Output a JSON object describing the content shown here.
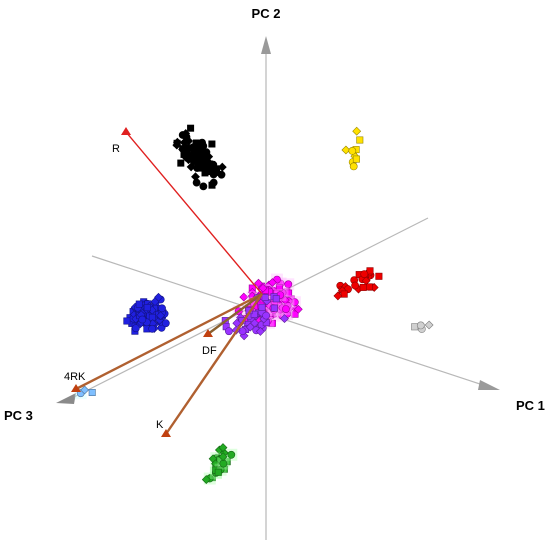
{
  "chart_data": {
    "type": "scatter",
    "subtype": "3d-pca-biplot",
    "title": "",
    "axes": [
      {
        "name": "PC 1",
        "label": "PC 1"
      },
      {
        "name": "PC 2",
        "label": "PC 2"
      },
      {
        "name": "PC 3",
        "label": "PC 3"
      }
    ],
    "loading_vectors": [
      {
        "label": "R",
        "color": "#e02020"
      },
      {
        "label": "4RK",
        "color": "#b06030"
      },
      {
        "label": "DF",
        "color": "#8a6030"
      },
      {
        "label": "K",
        "color": "#b06030"
      }
    ],
    "clusters": [
      {
        "color": "#000000",
        "count": 85
      },
      {
        "color": "#ffe100",
        "count": 10
      },
      {
        "color": "#ff00ff",
        "count": 160
      },
      {
        "color": "#9933ff",
        "count": 40
      },
      {
        "color": "#ee0000",
        "count": 28
      },
      {
        "color": "#2020e0",
        "count": 115
      },
      {
        "color": "#22aa22",
        "count": 30
      },
      {
        "color": "#d0d0d0",
        "count": 4
      },
      {
        "color": "#7fbfff",
        "count": 3
      }
    ],
    "grid": false,
    "legend": "none"
  }
}
